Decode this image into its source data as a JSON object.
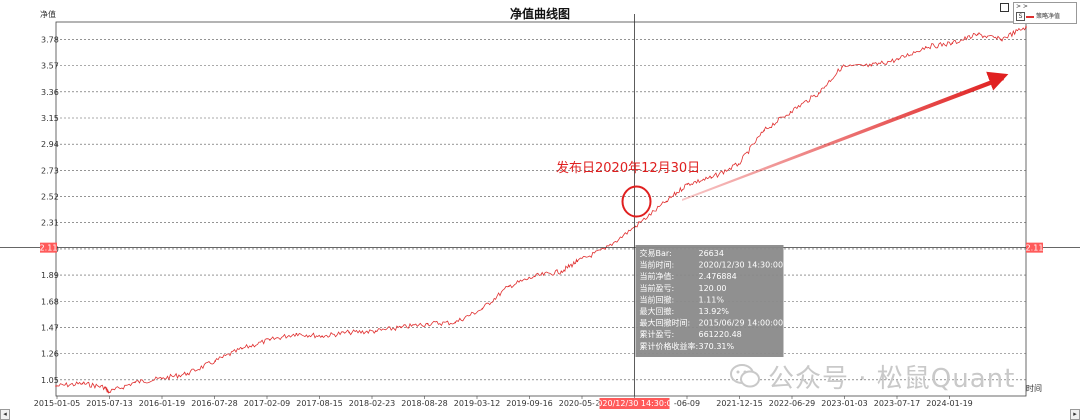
{
  "chart_data": {
    "type": "line",
    "title": "净值曲线图",
    "ylabel": "净值",
    "xlabel": "时间",
    "ylim": [
      0.92,
      3.92
    ],
    "yticks": [
      "1.05",
      "1.26",
      "1.47",
      "1.68",
      "1.89",
      "2.10",
      "2.31",
      "2.52",
      "2.73",
      "2.94",
      "3.15",
      "3.36",
      "3.57",
      "3.78"
    ],
    "xticks": [
      "2015-01-05",
      "2015-07-13",
      "2016-01-19",
      "2016-07-28",
      "2017-02-09",
      "2017-08-15",
      "2018-02-23",
      "2018-08-28",
      "2019-03-12",
      "2019-09-16",
      "2020-05-25",
      "2020/12/30 14:30:00",
      "-06-09",
      "2021-12-15",
      "2022-06-29",
      "2023-01-03",
      "2023-07-17",
      "2024-01-19"
    ],
    "grid": true,
    "legend": "top-right",
    "series": [
      {
        "name": "策略净值",
        "color": "#e03030",
        "x": [
          "2015-01-05",
          "2015-04-10",
          "2015-06-29",
          "2015-07-13",
          "2015-10-15",
          "2016-01-19",
          "2016-04-20",
          "2016-07-28",
          "2016-11-01",
          "2017-02-09",
          "2017-05-15",
          "2017-08-15",
          "2017-11-20",
          "2018-02-23",
          "2018-05-25",
          "2018-08-28",
          "2018-12-05",
          "2019-03-12",
          "2019-06-15",
          "2019-09-16",
          "2019-12-20",
          "2020-02-15",
          "2020-05-25",
          "2020-09-10",
          "2020-12-30",
          "2021-03-15",
          "2021-06-09",
          "2021-09-15",
          "2021-12-15",
          "2022-03-20",
          "2022-06-29",
          "2022-09-20",
          "2023-01-03",
          "2023-04-10",
          "2023-07-17",
          "2023-10-20",
          "2024-01-19",
          "2024-04-10",
          "2024-07-10"
        ],
        "values": [
          1.0,
          1.02,
          0.99,
          0.95,
          1.03,
          1.06,
          1.1,
          1.2,
          1.3,
          1.37,
          1.42,
          1.4,
          1.43,
          1.44,
          1.47,
          1.5,
          1.51,
          1.62,
          1.8,
          1.88,
          1.92,
          2.0,
          2.1,
          2.28,
          2.48,
          2.62,
          2.67,
          2.78,
          3.05,
          3.2,
          3.35,
          3.56,
          3.57,
          3.62,
          3.72,
          3.75,
          3.82,
          3.78,
          3.88
        ]
      }
    ],
    "annotations": {
      "current_value_label": "2.11",
      "release_note": "发布日2020年12月30日"
    },
    "tooltip": [
      {
        "label": "交易Bar:",
        "value": "26634"
      },
      {
        "label": "当前时间:",
        "value": "2020/12/30 14:30:00"
      },
      {
        "label": "当前净值:",
        "value": "2.476884"
      },
      {
        "label": "当前盈亏:",
        "value": "120.00"
      },
      {
        "label": "当前回撤:",
        "value": "1.11%"
      },
      {
        "label": "最大回撤:",
        "value": "13.92%"
      },
      {
        "label": "最大回撤时间:",
        "value": "2015/06/29 14:00:00"
      },
      {
        "label": "累计盈亏:",
        "value": "661220.48"
      },
      {
        "label": "累计价格收益率:",
        "value": "370.31%"
      }
    ]
  },
  "legend": {
    "top_glyph": "> >",
    "check_glyph": "S"
  },
  "watermark": {
    "text": "公众号 · 松鼠Quant"
  },
  "scrollbar": {
    "left_glyph": "◂",
    "right_glyph": "▸"
  },
  "colors": {
    "line": "#e03030",
    "arrow": "#e02020",
    "highlight": "#ff5a5a",
    "tooltip_bg": "#8a8a8a"
  }
}
